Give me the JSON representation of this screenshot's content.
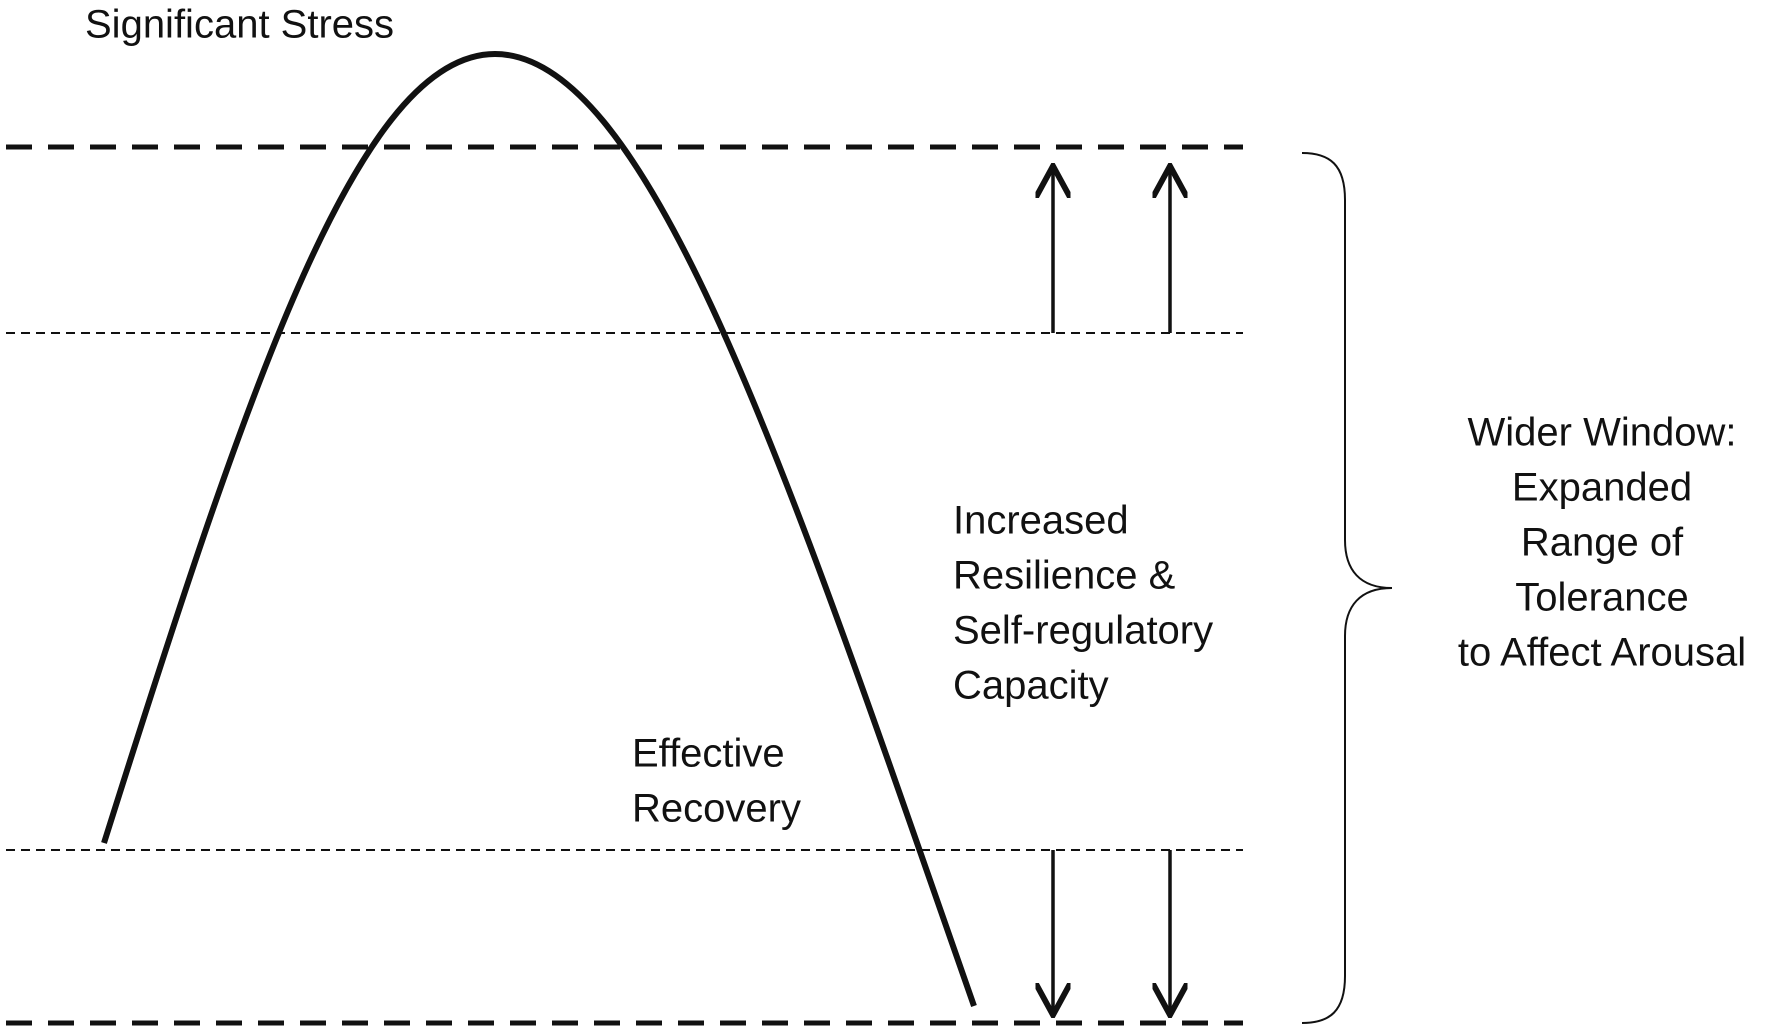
{
  "stress_label": "Significant Stress",
  "resilience_label": {
    "lines": [
      "Increased",
      "Resilience &",
      "Self-regulatory",
      "Capacity"
    ]
  },
  "recovery_label": {
    "lines": [
      "Effective",
      "Recovery"
    ]
  },
  "window_label": {
    "lines": [
      "Wider Window:",
      "Expanded",
      "Range of",
      "Tolerance",
      "to Affect Arousal"
    ]
  }
}
